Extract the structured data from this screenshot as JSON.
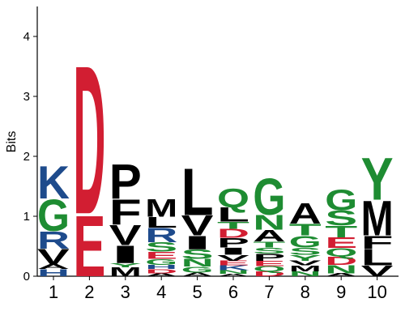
{
  "chart_data": {
    "type": "sequence-logo",
    "ylabel": "Bits",
    "ylim": [
      0,
      4.5
    ],
    "yticks": [
      "0",
      "1",
      "2",
      "3",
      "4"
    ],
    "positions": [
      "1",
      "2",
      "3",
      "4",
      "5",
      "6",
      "7",
      "8",
      "9",
      "10"
    ],
    "colors": {
      "acidic": "#d21e32",
      "basic": "#1e4b8c",
      "polar": "#1e8c32",
      "hydrophobic": "#000000"
    },
    "stacks": [
      [
        {
          "letter": "H",
          "bits": 0.12,
          "group": "basic"
        },
        {
          "letter": "A",
          "bits": 0.08,
          "group": "hydrophobic"
        },
        {
          "letter": "V",
          "bits": 0.26,
          "group": "hydrophobic"
        },
        {
          "letter": "R",
          "bits": 0.3,
          "group": "basic"
        },
        {
          "letter": "G",
          "bits": 0.54,
          "group": "polar"
        },
        {
          "letter": "K",
          "bits": 0.56,
          "group": "basic"
        }
      ],
      [
        {
          "letter": "E",
          "bits": 1.05,
          "group": "acidic"
        },
        {
          "letter": "D",
          "bits": 2.55,
          "group": "acidic"
        }
      ],
      [
        {
          "letter": "M",
          "bits": 0.15,
          "group": "hydrophobic"
        },
        {
          "letter": "Y",
          "bits": 0.07,
          "group": "polar"
        },
        {
          "letter": "I",
          "bits": 0.3,
          "group": "hydrophobic"
        },
        {
          "letter": "V",
          "bits": 0.34,
          "group": "hydrophobic"
        },
        {
          "letter": "F",
          "bits": 0.43,
          "group": "hydrophobic"
        },
        {
          "letter": "P",
          "bits": 0.6,
          "group": "hydrophobic"
        }
      ],
      [
        {
          "letter": "A",
          "bits": 0.05,
          "group": "hydrophobic"
        },
        {
          "letter": "D",
          "bits": 0.07,
          "group": "acidic"
        },
        {
          "letter": "H",
          "bits": 0.07,
          "group": "basic"
        },
        {
          "letter": "G",
          "bits": 0.1,
          "group": "polar"
        },
        {
          "letter": "E",
          "bits": 0.12,
          "group": "acidic"
        },
        {
          "letter": "S",
          "bits": 0.16,
          "group": "polar"
        },
        {
          "letter": "R",
          "bits": 0.24,
          "group": "basic"
        },
        {
          "letter": "L",
          "bits": 0.18,
          "group": "hydrophobic"
        },
        {
          "letter": "M",
          "bits": 0.31,
          "group": "hydrophobic"
        }
      ],
      [
        {
          "letter": "A",
          "bits": 0.06,
          "group": "hydrophobic"
        },
        {
          "letter": "G",
          "bits": 0.1,
          "group": "polar"
        },
        {
          "letter": "N",
          "bits": 0.13,
          "group": "polar"
        },
        {
          "letter": "S",
          "bits": 0.16,
          "group": "polar"
        },
        {
          "letter": "I",
          "bits": 0.23,
          "group": "hydrophobic"
        },
        {
          "letter": "V",
          "bits": 0.34,
          "group": "hydrophobic"
        },
        {
          "letter": "L",
          "bits": 0.8,
          "group": "hydrophobic"
        }
      ],
      [
        {
          "letter": "A",
          "bits": 0.04,
          "group": "hydrophobic"
        },
        {
          "letter": "N",
          "bits": 0.06,
          "group": "polar"
        },
        {
          "letter": "K",
          "bits": 0.08,
          "group": "basic"
        },
        {
          "letter": "E",
          "bits": 0.08,
          "group": "acidic"
        },
        {
          "letter": "V",
          "bits": 0.1,
          "group": "hydrophobic"
        },
        {
          "letter": "I",
          "bits": 0.12,
          "group": "hydrophobic"
        },
        {
          "letter": "P",
          "bits": 0.16,
          "group": "hydrophobic"
        },
        {
          "letter": "D",
          "bits": 0.15,
          "group": "acidic"
        },
        {
          "letter": "T",
          "bits": 0.12,
          "group": "polar"
        },
        {
          "letter": "L",
          "bits": 0.24,
          "group": "hydrophobic"
        },
        {
          "letter": "Q",
          "bits": 0.32,
          "group": "polar"
        }
      ],
      [
        {
          "letter": "D",
          "bits": 0.08,
          "group": "acidic"
        },
        {
          "letter": "Q",
          "bits": 0.09,
          "group": "polar"
        },
        {
          "letter": "E",
          "bits": 0.09,
          "group": "acidic"
        },
        {
          "letter": "P",
          "bits": 0.12,
          "group": "hydrophobic"
        },
        {
          "letter": "S",
          "bits": 0.1,
          "group": "polar"
        },
        {
          "letter": "T",
          "bits": 0.1,
          "group": "polar"
        },
        {
          "letter": "A",
          "bits": 0.2,
          "group": "hydrophobic"
        },
        {
          "letter": "N",
          "bits": 0.25,
          "group": "polar"
        },
        {
          "letter": "G",
          "bits": 0.62,
          "group": "polar"
        }
      ],
      [
        {
          "letter": "N",
          "bits": 0.08,
          "group": "polar"
        },
        {
          "letter": "M",
          "bits": 0.1,
          "group": "hydrophobic"
        },
        {
          "letter": "V",
          "bits": 0.08,
          "group": "hydrophobic"
        },
        {
          "letter": "Y",
          "bits": 0.1,
          "group": "polar"
        },
        {
          "letter": "S",
          "bits": 0.12,
          "group": "polar"
        },
        {
          "letter": "G",
          "bits": 0.2,
          "group": "polar"
        },
        {
          "letter": "T",
          "bits": 0.2,
          "group": "polar"
        },
        {
          "letter": "A",
          "bits": 0.35,
          "group": "hydrophobic"
        }
      ],
      [
        {
          "letter": "A",
          "bits": 0.05,
          "group": "hydrophobic"
        },
        {
          "letter": "N",
          "bits": 0.14,
          "group": "polar"
        },
        {
          "letter": "D",
          "bits": 0.14,
          "group": "acidic"
        },
        {
          "letter": "Q",
          "bits": 0.14,
          "group": "polar"
        },
        {
          "letter": "E",
          "bits": 0.18,
          "group": "acidic"
        },
        {
          "letter": "T",
          "bits": 0.2,
          "group": "polar"
        },
        {
          "letter": "S",
          "bits": 0.25,
          "group": "polar"
        },
        {
          "letter": "G",
          "bits": 0.35,
          "group": "polar"
        }
      ],
      [
        {
          "letter": "V",
          "bits": 0.18,
          "group": "hydrophobic"
        },
        {
          "letter": "L",
          "bits": 0.28,
          "group": "hydrophobic"
        },
        {
          "letter": "F",
          "bits": 0.22,
          "group": "hydrophobic"
        },
        {
          "letter": "M",
          "bits": 0.6,
          "group": "hydrophobic"
        },
        {
          "letter": "Y",
          "bits": 0.72,
          "group": "polar"
        }
      ]
    ]
  }
}
